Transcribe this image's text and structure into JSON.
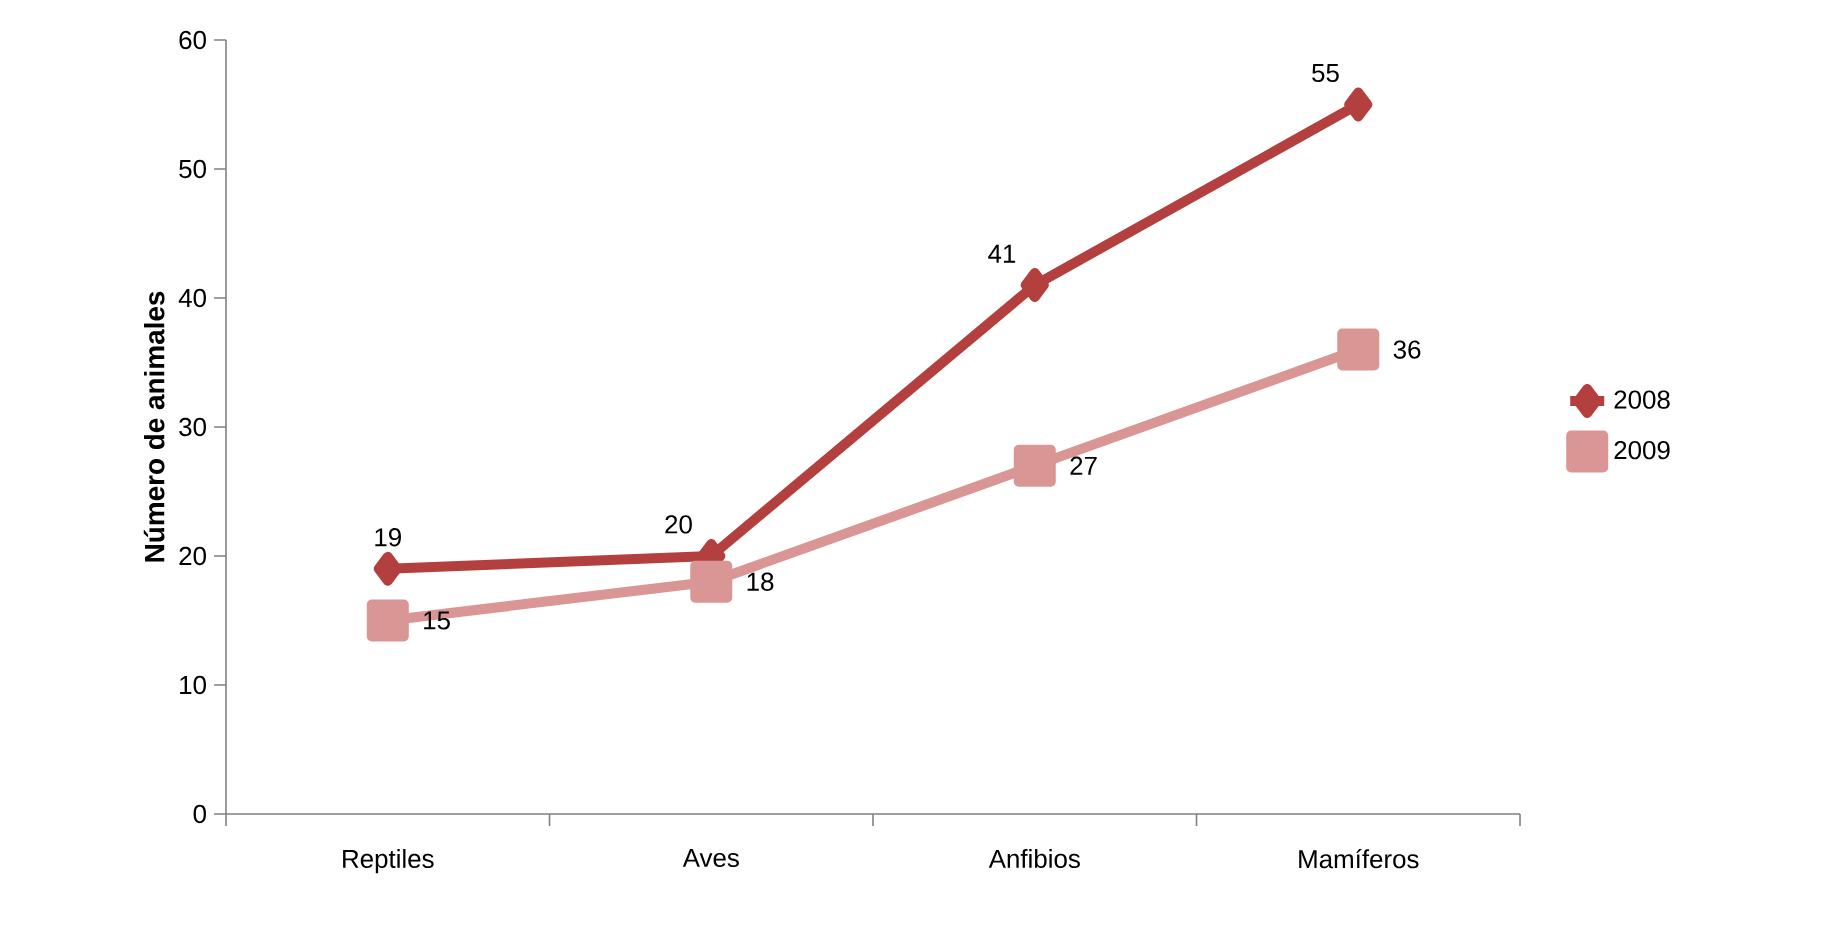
{
  "chart_data": {
    "type": "line",
    "ylabel": "Número de animales",
    "categories": [
      "Reptiles",
      "Aves",
      "Anfibios",
      "Mamíferos"
    ],
    "series": [
      {
        "name": "2008",
        "color": "#b3403f",
        "marker": "diamond",
        "values": [
          19,
          20,
          41,
          55
        ]
      },
      {
        "name": "2009",
        "color": "#d99694",
        "marker": "square",
        "values": [
          15,
          18,
          27,
          36
        ]
      }
    ],
    "ylim": [
      0,
      60
    ],
    "yticks": [
      0,
      10,
      20,
      30,
      40,
      50,
      60
    ],
    "data_labels": true,
    "legend": "right",
    "grid": false,
    "line_style": "solid"
  }
}
